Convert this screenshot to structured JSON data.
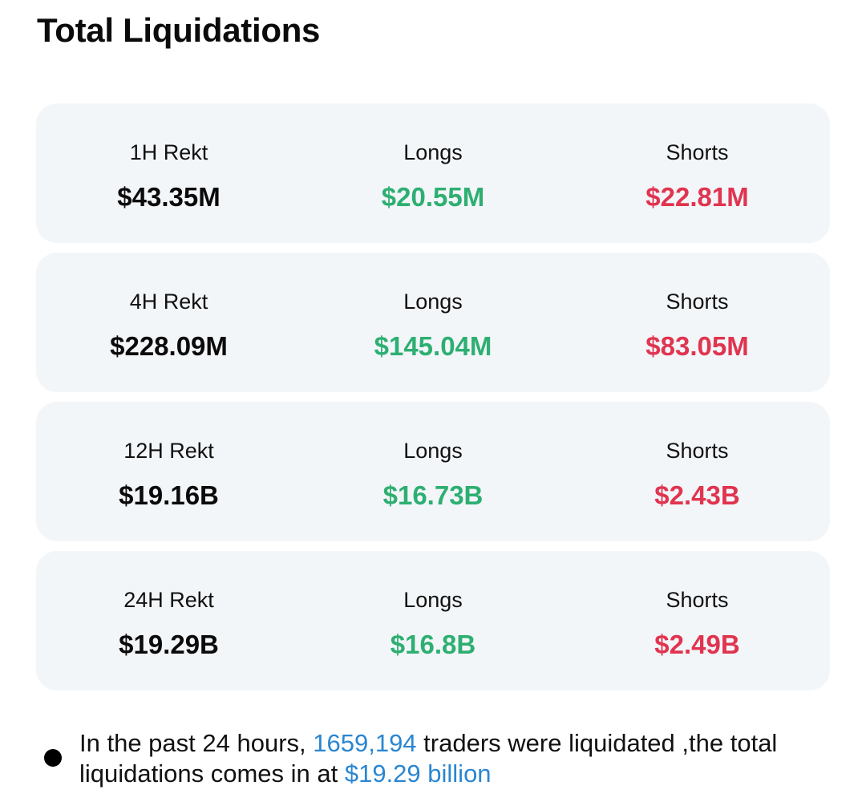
{
  "title": "Total Liquidations",
  "cards": [
    {
      "period_label": "1H Rekt",
      "total": "$43.35M",
      "longs_label": "Longs",
      "longs": "$20.55M",
      "shorts_label": "Shorts",
      "shorts": "$22.81M"
    },
    {
      "period_label": "4H Rekt",
      "total": "$228.09M",
      "longs_label": "Longs",
      "longs": "$145.04M",
      "shorts_label": "Shorts",
      "shorts": "$83.05M"
    },
    {
      "period_label": "12H Rekt",
      "total": "$19.16B",
      "longs_label": "Longs",
      "longs": "$16.73B",
      "shorts_label": "Shorts",
      "shorts": "$2.43B"
    },
    {
      "period_label": "24H Rekt",
      "total": "$19.29B",
      "longs_label": "Longs",
      "longs": "$16.8B",
      "shorts_label": "Shorts",
      "shorts": "$2.49B"
    }
  ],
  "note": {
    "part1": "In the past 24 hours, ",
    "traders_count": "1659,194",
    "part2": " traders were liquidated ,the total liquidations comes in at ",
    "total_amount": "$19.29 billion"
  },
  "colors": {
    "longs": "#2eaf72",
    "shorts": "#e0344f",
    "highlight": "#2a86d1",
    "card_bg": "#f3f6f9"
  }
}
